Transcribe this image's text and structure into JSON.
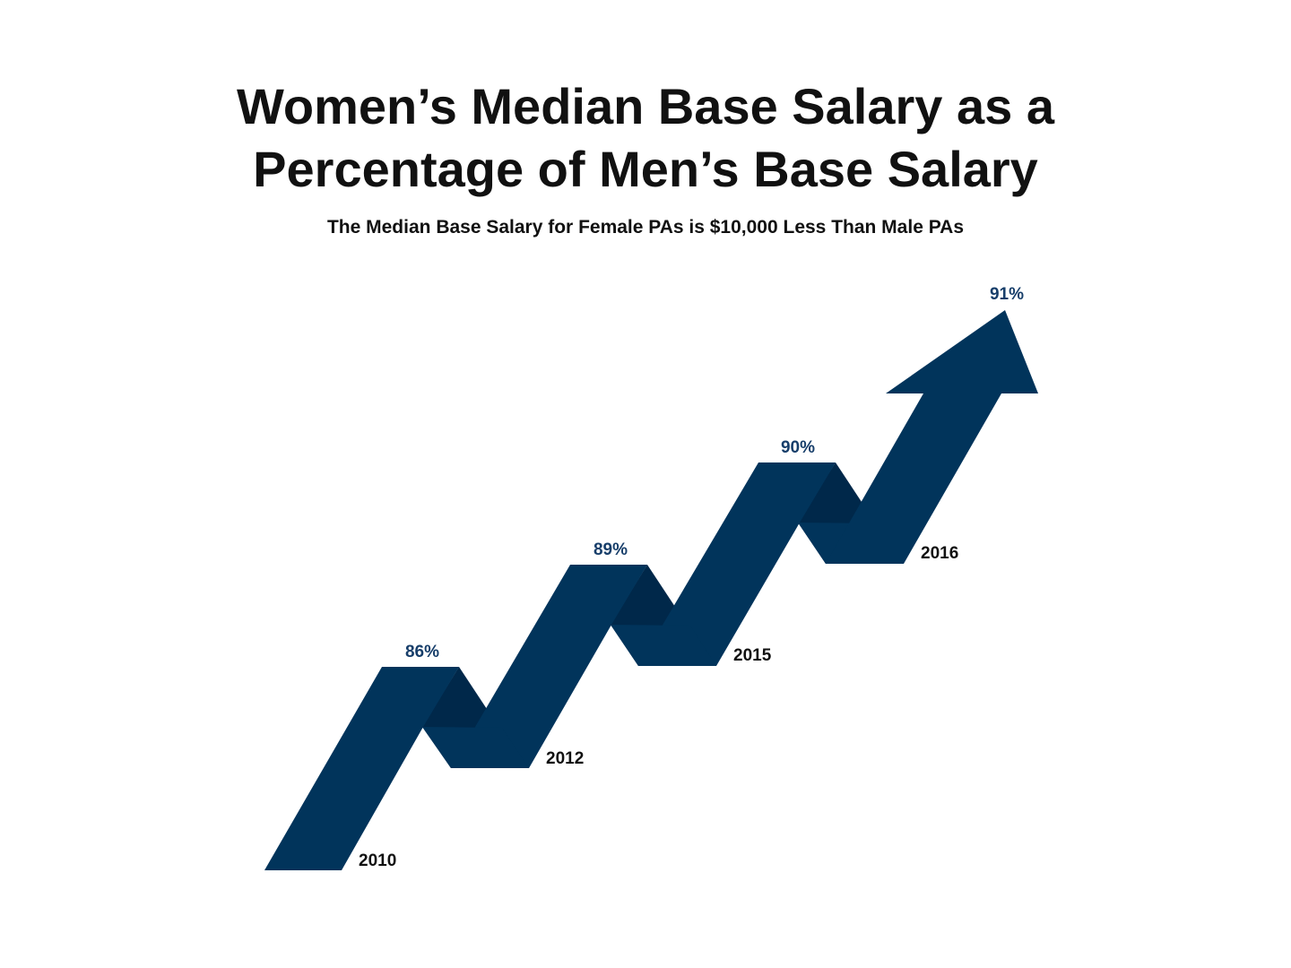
{
  "colors": {
    "ribbon": "#01345b",
    "fold": "#00284a",
    "value_text": "#173e6a",
    "year_text": "#111111"
  },
  "chart_data": {
    "type": "line",
    "title": [
      "Women’s Median Base Salary as a",
      "Percentage of Men’s Base Salary"
    ],
    "subtitle": "The Median Base Salary for Female PAs is $10,000 Less Than Male PAs",
    "categories": [
      "2010",
      "2012",
      "2015",
      "2016"
    ],
    "value_labels": [
      "86%",
      "89%",
      "90%",
      "91%"
    ],
    "series": [
      {
        "values": [
          86,
          89,
          90,
          91
        ]
      }
    ],
    "style": "rising ribbon arrow",
    "grid": false
  }
}
